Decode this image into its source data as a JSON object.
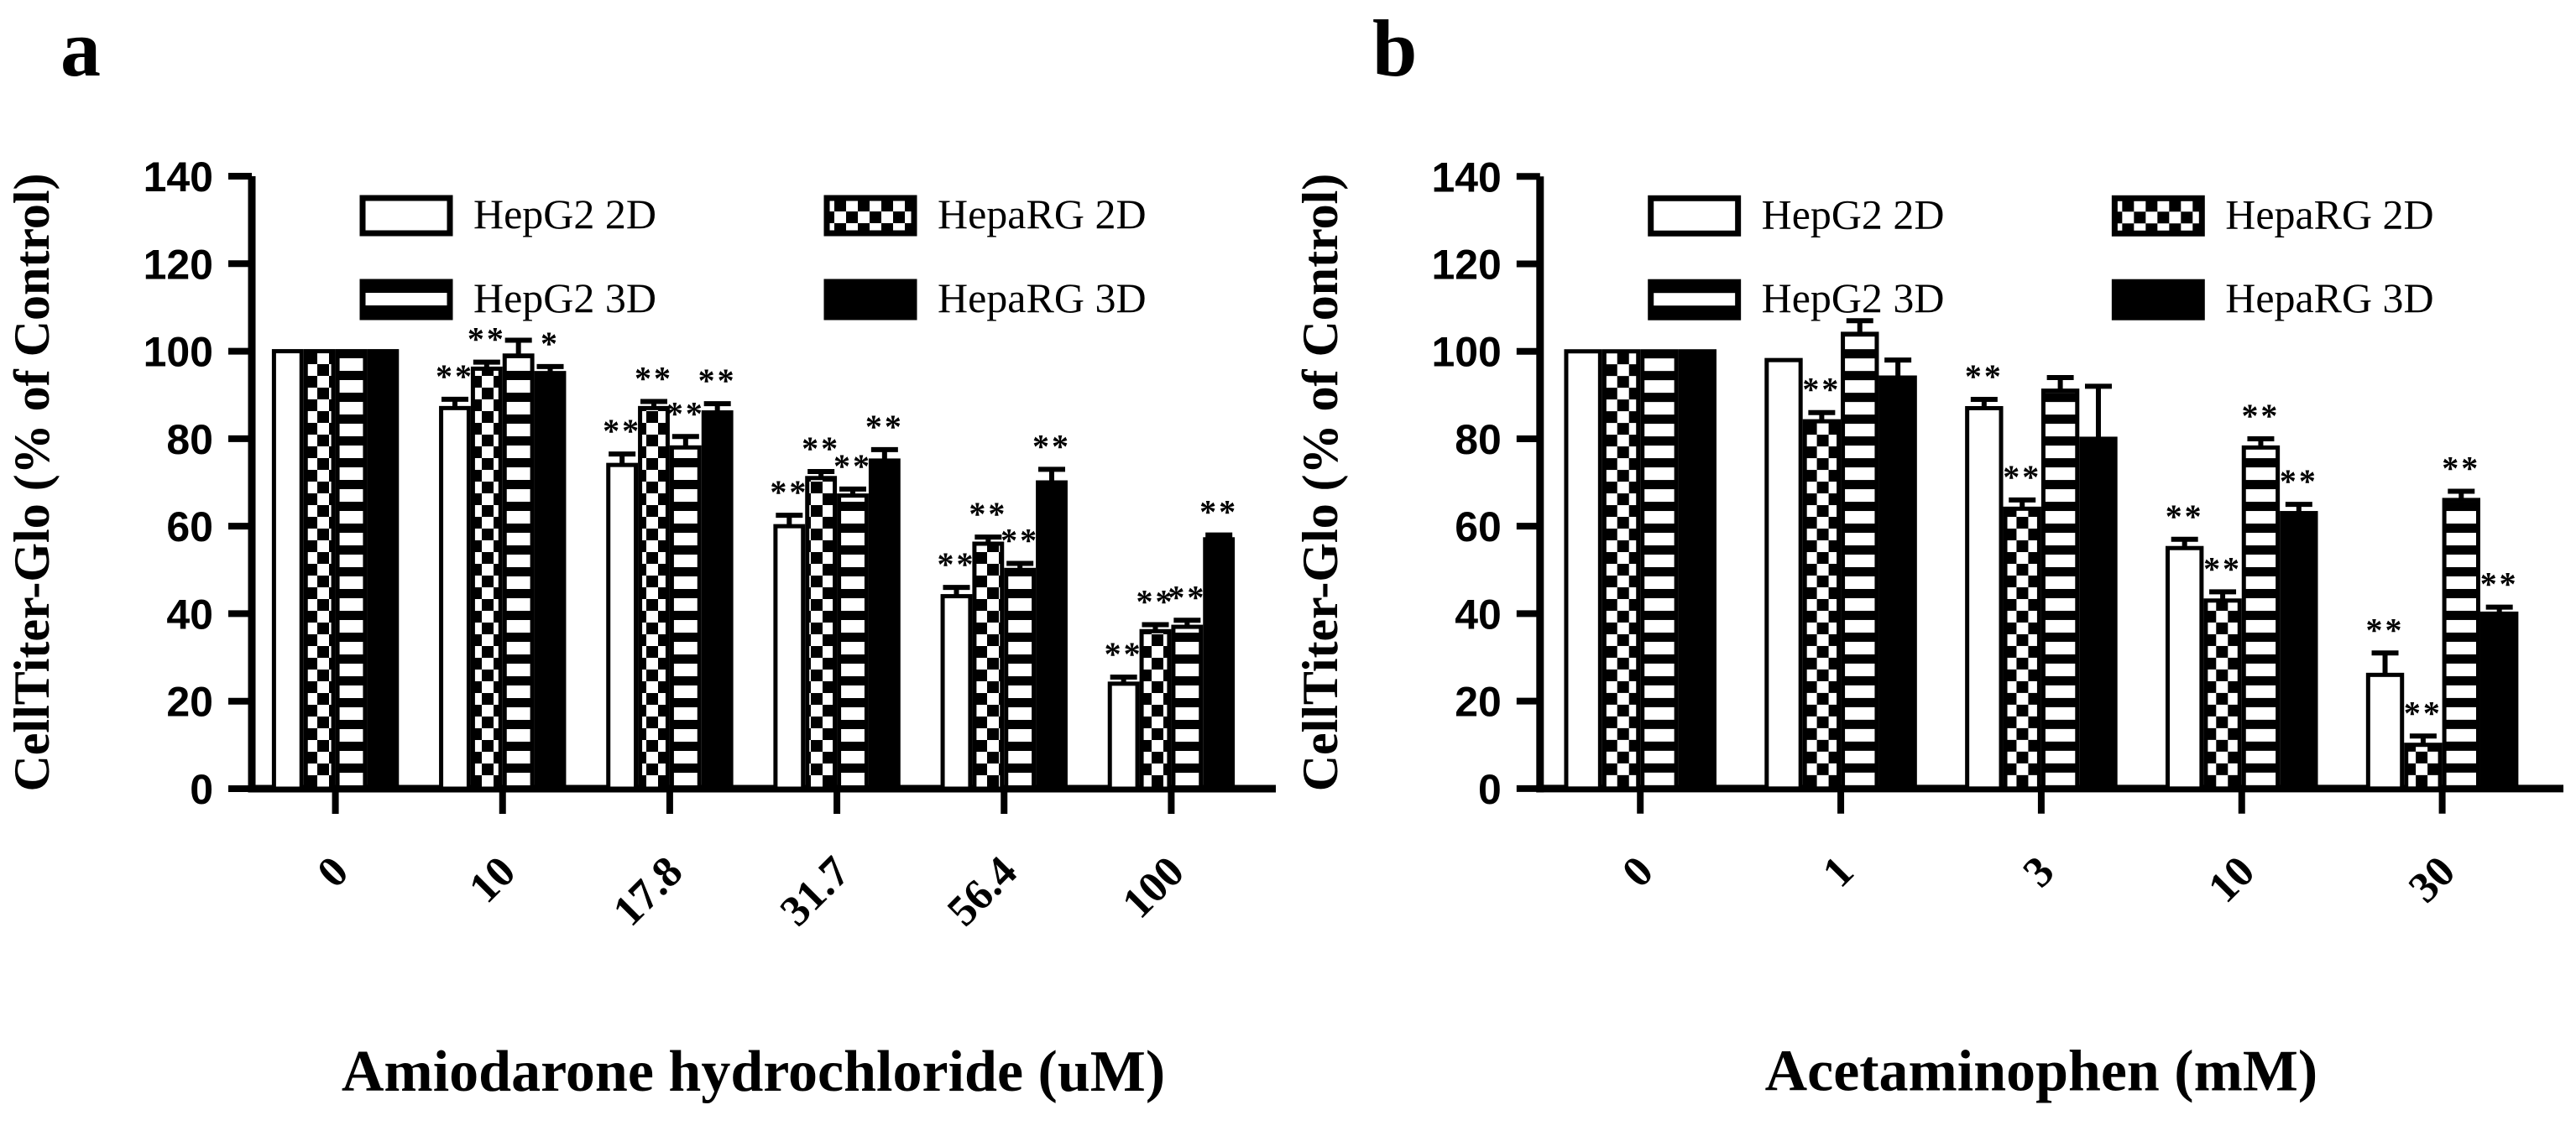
{
  "figure": {
    "background": "#ffffff",
    "ink": "#000000"
  },
  "chart_data": [
    {
      "type": "bar",
      "panel_letter": "a",
      "title": "",
      "xlabel": "Amiodarone hydrochloride (uM)",
      "ylabel": "CellTiter-Glo (% of Control)",
      "ylim": [
        0,
        140
      ],
      "yticks": [
        0,
        20,
        40,
        60,
        80,
        100,
        120,
        140
      ],
      "grid": false,
      "legend_position": "top-left",
      "categories": [
        "0",
        "10",
        "17.8",
        "31.7",
        "56.4",
        "100"
      ],
      "series": [
        {
          "name": "HepG2 2D",
          "pattern": "white",
          "values": [
            100,
            87,
            74,
            60,
            44,
            24
          ],
          "errors": [
            0,
            2,
            2.5,
            2.5,
            2,
            1.5
          ],
          "significance": [
            "",
            "**",
            "**",
            "**",
            "**",
            "**"
          ]
        },
        {
          "name": "HepaRG 2D",
          "pattern": "checker",
          "values": [
            100,
            96,
            87,
            71,
            56,
            36
          ],
          "errors": [
            0,
            1.5,
            1.5,
            1.5,
            1.5,
            1.5
          ],
          "significance": [
            "",
            "**",
            "**",
            "**",
            "**",
            "**"
          ]
        },
        {
          "name": "HepG2 3D",
          "pattern": "hstripe",
          "values": [
            100,
            99,
            78,
            67,
            50,
            37
          ],
          "errors": [
            0,
            3.5,
            2.5,
            1.5,
            1.5,
            1.5
          ],
          "significance": [
            "",
            "",
            "**",
            "**",
            "**",
            "**"
          ]
        },
        {
          "name": "HepaRG 3D",
          "pattern": "solid",
          "values": [
            100,
            95,
            86,
            75,
            70,
            57
          ],
          "errors": [
            0,
            1.5,
            2,
            2.5,
            3,
            1
          ],
          "significance": [
            "",
            "*",
            "**",
            "**",
            "**",
            "**"
          ]
        }
      ],
      "legend": {
        "rows": [
          [
            "HepG2 2D",
            "HepaRG 2D"
          ],
          [
            "HepG2 3D",
            "HepaRG 3D"
          ]
        ]
      }
    },
    {
      "type": "bar",
      "panel_letter": "b",
      "title": "",
      "xlabel": "Acetaminophen (mM)",
      "ylabel": "CellTiter-Glo (% of Control)",
      "ylim": [
        0,
        140
      ],
      "yticks": [
        0,
        20,
        40,
        60,
        80,
        100,
        120,
        140
      ],
      "grid": false,
      "legend_position": "top-left",
      "categories": [
        "0",
        "1",
        "3",
        "10",
        "30"
      ],
      "series": [
        {
          "name": "HepG2 2D",
          "pattern": "white",
          "values": [
            100,
            98,
            87,
            55,
            26
          ],
          "errors": [
            0,
            0,
            2,
            2,
            5
          ],
          "significance": [
            "",
            "",
            "**",
            "**",
            "**"
          ]
        },
        {
          "name": "HepaRG 2D",
          "pattern": "checker",
          "values": [
            100,
            84,
            64,
            43,
            10
          ],
          "errors": [
            0,
            2,
            2,
            2,
            2
          ],
          "significance": [
            "",
            "**",
            "**",
            "**",
            "**"
          ]
        },
        {
          "name": "HepG2 3D",
          "pattern": "hstripe",
          "values": [
            100,
            104,
            91,
            78,
            66
          ],
          "errors": [
            0,
            3,
            3,
            2,
            2
          ],
          "significance": [
            "",
            "",
            "",
            "**",
            "**"
          ]
        },
        {
          "name": "HepaRG 3D",
          "pattern": "solid",
          "values": [
            100,
            94,
            80,
            63,
            40
          ],
          "errors": [
            0,
            4,
            12,
            2,
            1.5
          ],
          "significance": [
            "",
            "",
            "",
            "**",
            "**"
          ]
        }
      ],
      "legend": {
        "rows": [
          [
            "HepG2 2D",
            "HepaRG 2D"
          ],
          [
            "HepG2 3D",
            "HepaRG 3D"
          ]
        ]
      }
    }
  ]
}
